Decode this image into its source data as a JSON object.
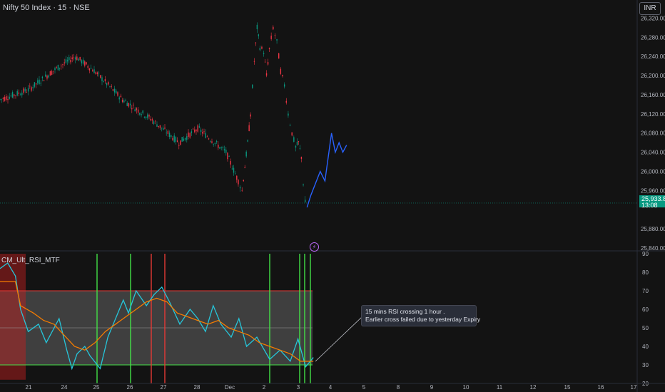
{
  "header": {
    "title": "Nifty 50 Index · 15 · NSE",
    "currency": "INR"
  },
  "last_price": {
    "value": "25,933.80",
    "countdown": "13:08",
    "color": "#089981"
  },
  "indicator": {
    "label": "CM_Ult_RSI_MTF"
  },
  "annotation": {
    "line1": "15 mins RSI crossing 1 hour .",
    "line2": "Earlier cross failed due to yesterday Expiry"
  },
  "chart_data": [
    {
      "type": "candlestick",
      "title": "Nifty 50 Index · 15 · NSE",
      "y_axis_ticks": [
        "26,320.00",
        "26,280.00",
        "26,240.00",
        "26,200.00",
        "26,160.00",
        "26,120.00",
        "26,080.00",
        "26,040.00",
        "26,000.00",
        "25,960.00",
        "25,880.00",
        "25,840.00"
      ],
      "x_axis_ticks": [
        "21",
        "24",
        "25",
        "26",
        "27",
        "28",
        "Dec",
        "2",
        "3",
        "4",
        "5",
        "8",
        "9",
        "10",
        "11",
        "12",
        "15",
        "16",
        "17"
      ],
      "ylim": [
        25840,
        26340
      ],
      "price_path": [
        [
          0,
          26150
        ],
        [
          3,
          26170
        ],
        [
          6,
          26215
        ],
        [
          8,
          26240
        ],
        [
          10,
          26210
        ],
        [
          13,
          26150
        ],
        [
          16,
          26110
        ],
        [
          19,
          26060
        ],
        [
          21,
          26090
        ],
        [
          24,
          26040
        ],
        [
          25.3,
          25980
        ],
        [
          25.7,
          25960
        ],
        [
          26,
          26010
        ],
        [
          26.3,
          26060
        ],
        [
          26.6,
          26120
        ],
        [
          27,
          26230
        ],
        [
          27.3,
          26300
        ],
        [
          27.6,
          26260
        ],
        [
          28,
          26250
        ],
        [
          28.3,
          26200
        ],
        [
          28.6,
          26255
        ],
        [
          29,
          26300
        ],
        [
          29.4,
          26270
        ],
        [
          29.8,
          26210
        ],
        [
          30.2,
          26180
        ],
        [
          30.6,
          26120
        ],
        [
          31,
          26080
        ],
        [
          31.4,
          26050
        ],
        [
          31.7,
          26060
        ],
        [
          32,
          26030
        ],
        [
          32.2,
          25975
        ],
        [
          32.4,
          25935
        ],
        [
          32.6,
          25925
        ]
      ],
      "projection": [
        [
          32.6,
          25925
        ],
        [
          33,
          25950
        ],
        [
          34,
          26000
        ],
        [
          34.5,
          25980
        ],
        [
          35.2,
          26080
        ],
        [
          35.6,
          26040
        ],
        [
          36,
          26060
        ],
        [
          36.4,
          26040
        ],
        [
          36.8,
          26055
        ]
      ],
      "colors": {
        "up": "#089981",
        "down": "#f23645",
        "projection": "#2962ff"
      }
    },
    {
      "type": "line",
      "title": "CM_Ult_RSI_MTF",
      "y_axis_ticks": [
        "90",
        "80",
        "70",
        "60",
        "50",
        "40",
        "30",
        "20"
      ],
      "ylim": [
        20,
        90
      ],
      "bands": {
        "upper": 70,
        "middle": 50,
        "lower": 30
      },
      "series": [
        {
          "color": "#26c6da",
          "values": [
            [
              0,
              82
            ],
            [
              0.6,
              85
            ],
            [
              1.2,
              78
            ],
            [
              1.6,
              60
            ],
            [
              2.2,
              48
            ],
            [
              3,
              52
            ],
            [
              3.6,
              42
            ],
            [
              4.6,
              55
            ],
            [
              5.2,
              38
            ],
            [
              5.6,
              28
            ],
            [
              6,
              36
            ],
            [
              6.6,
              40
            ],
            [
              7,
              35
            ],
            [
              7.8,
              28
            ],
            [
              8.4,
              45
            ],
            [
              9,
              55
            ],
            [
              9.6,
              65
            ],
            [
              10,
              58
            ],
            [
              10.6,
              70
            ],
            [
              11.4,
              62
            ],
            [
              12,
              68
            ],
            [
              12.6,
              72
            ],
            [
              13.2,
              64
            ],
            [
              14,
              52
            ],
            [
              14.8,
              60
            ],
            [
              15.4,
              55
            ],
            [
              16,
              48
            ],
            [
              16.6,
              62
            ],
            [
              17.2,
              52
            ],
            [
              18,
              45
            ],
            [
              18.6,
              55
            ],
            [
              19.2,
              40
            ],
            [
              20,
              45
            ],
            [
              21,
              33
            ],
            [
              21.8,
              38
            ],
            [
              22.6,
              32
            ],
            [
              23.2,
              44
            ],
            [
              23.8,
              29
            ],
            [
              24.4,
              34
            ]
          ]
        },
        {
          "color": "#f57c00",
          "values": [
            [
              0,
              75
            ],
            [
              1.2,
              75
            ],
            [
              1.6,
              62
            ],
            [
              2.6,
              58
            ],
            [
              3.4,
              54
            ],
            [
              4.2,
              52
            ],
            [
              5,
              46
            ],
            [
              5.8,
              40
            ],
            [
              6.6,
              38
            ],
            [
              7.4,
              42
            ],
            [
              8.2,
              48
            ],
            [
              9,
              52
            ],
            [
              9.8,
              56
            ],
            [
              10.6,
              60
            ],
            [
              11.4,
              64
            ],
            [
              12.2,
              66
            ],
            [
              13,
              64
            ],
            [
              13.8,
              58
            ],
            [
              14.6,
              56
            ],
            [
              15.4,
              54
            ],
            [
              16.2,
              52
            ],
            [
              17,
              54
            ],
            [
              17.8,
              50
            ],
            [
              18.6,
              48
            ],
            [
              19.4,
              46
            ],
            [
              20.2,
              42
            ],
            [
              21,
              40
            ],
            [
              21.8,
              38
            ],
            [
              22.6,
              36
            ],
            [
              23.4,
              32
            ],
            [
              24.4,
              32
            ]
          ]
        }
      ]
    }
  ]
}
